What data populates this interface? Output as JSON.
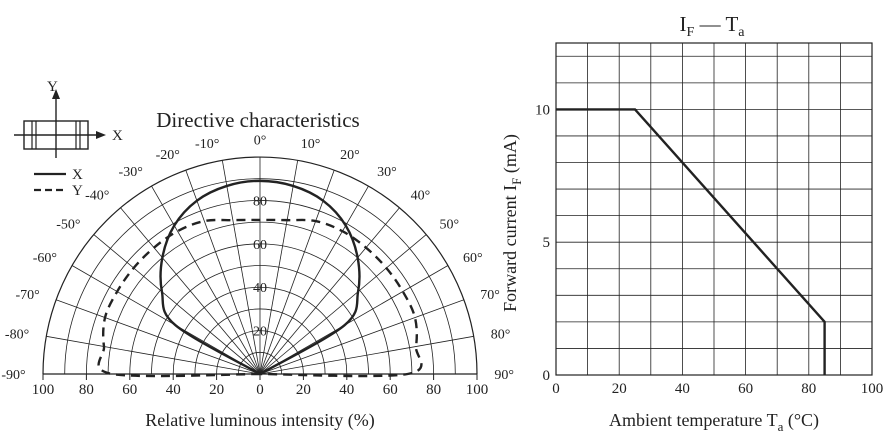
{
  "chart_data": [
    {
      "type": "line",
      "subtype": "polar",
      "title": "Directive characteristics",
      "xlabel": "Relative luminous intensity  (%)",
      "angle_labels": [
        "-90°",
        "-80°",
        "-70°",
        "-60°",
        "-50°",
        "-40°",
        "-30°",
        "-20°",
        "-10°",
        "0°",
        "10°",
        "20°",
        "30°",
        "40°",
        "50°",
        "60°",
        "70°",
        "80°",
        "90°"
      ],
      "angles": [
        -90,
        -80,
        -70,
        -60,
        -50,
        -40,
        -30,
        -20,
        -10,
        0,
        10,
        20,
        30,
        40,
        50,
        60,
        70,
        80,
        90
      ],
      "radial_labels": [
        "20",
        "40",
        "60",
        "80"
      ],
      "radial_values": [
        20,
        40,
        60,
        80
      ],
      "bottom_tick_labels": [
        "100",
        "80",
        "60",
        "40",
        "20",
        "0",
        "20",
        "40",
        "60",
        "80",
        "100"
      ],
      "rlim": [
        0,
        100
      ],
      "legend_labels": [
        "X",
        "Y"
      ],
      "inset_axis_labels": {
        "y": "Y",
        "x": "X"
      },
      "series": [
        {
          "name": "X",
          "style": "solid",
          "angles": [
            -60,
            -50,
            -40,
            -30,
            -20,
            -10,
            0,
            10,
            20,
            30,
            40,
            50,
            60
          ],
          "values": [
            45,
            59,
            70,
            79,
            85,
            88,
            89,
            88,
            85,
            79,
            70,
            59,
            45
          ]
        },
        {
          "name": "Y",
          "style": "dashed",
          "angles": [
            -90,
            -80,
            -70,
            -60,
            -50,
            -40,
            -30,
            -20,
            -10,
            0,
            10,
            20,
            30,
            40,
            50,
            60,
            70,
            80,
            90
          ],
          "values": [
            68,
            73,
            76,
            76,
            76,
            76,
            76,
            75,
            72,
            71,
            72,
            75,
            76,
            76,
            76,
            76,
            76,
            73,
            68
          ]
        }
      ]
    },
    {
      "type": "line",
      "title_main": "I",
      "title_main_sub": "F",
      "title_dash": " — ",
      "title_second": "T",
      "title_second_sub": "a",
      "xlabel_text": "Ambient temperature  T",
      "xlabel_sub": "a",
      "xlabel_unit": "  (°C)",
      "ylabel_text": "Forward current  I",
      "ylabel_sub": "F",
      "ylabel_unit": "  (mA)",
      "x_ticks": [
        0,
        20,
        40,
        60,
        80,
        100
      ],
      "x_tick_labels": [
        "0",
        "20",
        "40",
        "60",
        "80",
        "100"
      ],
      "y_ticks": [
        0,
        5,
        10
      ],
      "y_tick_labels": [
        "0",
        "5",
        "10"
      ],
      "xlim": [
        0,
        100
      ],
      "ylim": [
        0,
        12.5
      ],
      "grid": true,
      "series": [
        {
          "x": [
            0,
            25,
            85,
            85
          ],
          "y": [
            10,
            10,
            2,
            0
          ]
        }
      ]
    }
  ]
}
